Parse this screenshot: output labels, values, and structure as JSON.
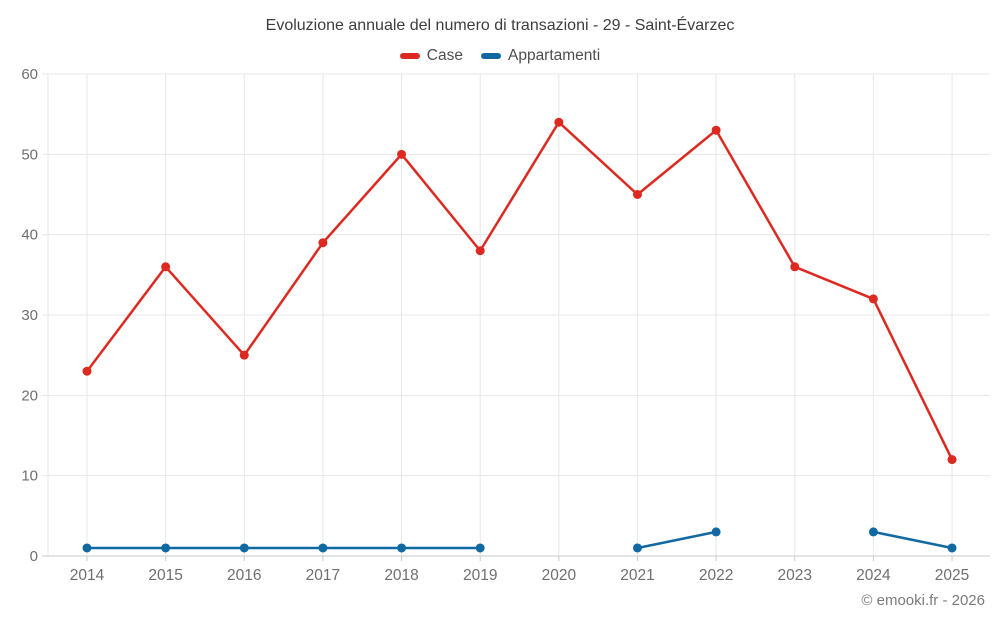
{
  "chart_data": {
    "type": "line",
    "title": "Evoluzione annuale del numero di transazioni - 29 - Saint-Évarzec",
    "x": [
      "2014",
      "2015",
      "2016",
      "2017",
      "2018",
      "2019",
      "2020",
      "2021",
      "2022",
      "2023",
      "2024",
      "2025"
    ],
    "series": [
      {
        "name": "Case",
        "color": "#dc2a21",
        "values": [
          23,
          36,
          25,
          39,
          50,
          38,
          54,
          45,
          53,
          36,
          32,
          12
        ]
      },
      {
        "name": "Appartamenti",
        "color": "#1269a2",
        "values": [
          1,
          1,
          1,
          1,
          1,
          1,
          null,
          1,
          3,
          null,
          3,
          1
        ]
      }
    ],
    "ylim": [
      0,
      60
    ],
    "yticks": [
      0,
      10,
      20,
      30,
      40,
      50,
      60
    ],
    "grid": true,
    "legend_position": "top",
    "xlabel": "",
    "ylabel": ""
  },
  "style": {
    "background": "#ffffff",
    "grid_color": "#e7e7e7",
    "axis_line_color": "#c9c9c9",
    "axis_label_color": "#6f6f6f",
    "title_color": "#3d3d3d",
    "legend_label_color": "#4f4f4f"
  },
  "footer": {
    "copyright": "© emooki.fr - 2026"
  }
}
